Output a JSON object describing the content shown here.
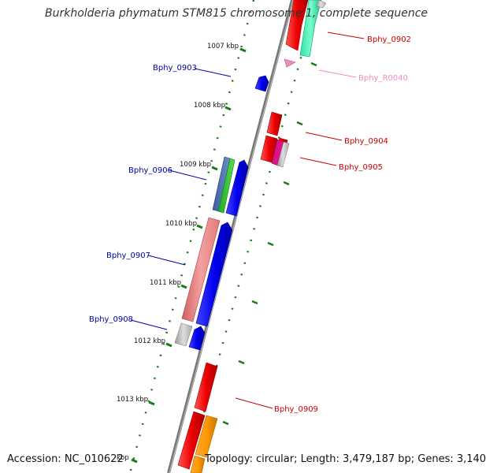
{
  "title": "Burkholderia phymatum STM815 chromosome 1, complete sequence",
  "footer": {
    "accession": "Accession: NC_010622",
    "topology": "Topology: circular; Length: 3,479,187 bp; Genes: 3,140"
  },
  "ticks": [
    {
      "label": "1007 kbp"
    },
    {
      "label": "1008 kbp"
    },
    {
      "label": "1009 kbp"
    },
    {
      "label": "1010 kbp"
    },
    {
      "label": "1011 kbp"
    },
    {
      "label": "1012 kbp"
    },
    {
      "label": "1013 kbp"
    },
    {
      "label": "kbp"
    }
  ],
  "genes": [
    {
      "id": "Bphy_0902",
      "strand": "forward",
      "color": "#dd1111"
    },
    {
      "id": "Bphy_R0040",
      "strand": "forward",
      "color": "#f08cbf"
    },
    {
      "id": "Bphy_0903",
      "strand": "reverse",
      "color": "#1111cc"
    },
    {
      "id": "Bphy_0904",
      "strand": "forward",
      "color": "#dd1111"
    },
    {
      "id": "Bphy_0905",
      "strand": "forward",
      "color": "#dd1111"
    },
    {
      "id": "Bphy_0906",
      "strand": "reverse",
      "color": "#1111cc"
    },
    {
      "id": "Bphy_0907",
      "strand": "reverse",
      "color": "#1111cc"
    },
    {
      "id": "Bphy_0908",
      "strand": "reverse",
      "color": "#1111cc"
    },
    {
      "id": "Bphy_0909",
      "strand": "forward",
      "color": "#dd1111"
    }
  ],
  "colors": {
    "forward_label": "#cc0000",
    "reverse_label": "#0000aa",
    "rrna_label": "#f08cbf",
    "backbone": "#888888",
    "tick": "#1a7a1a"
  }
}
